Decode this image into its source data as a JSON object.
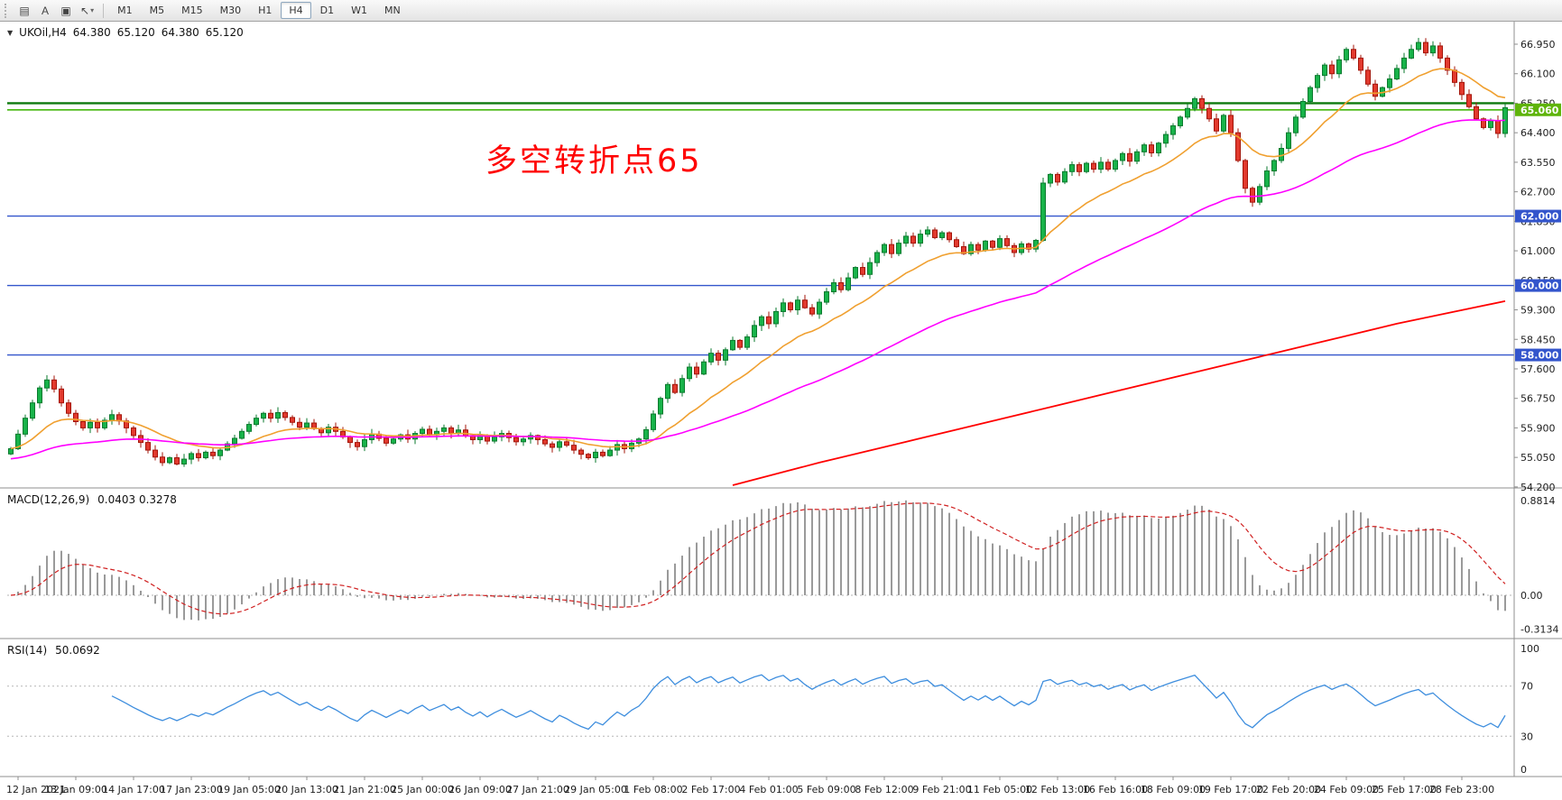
{
  "toolbar": {
    "tool_buttons": [
      {
        "name": "chart-window-icon",
        "glyph": "▤"
      },
      {
        "name": "text-annotation-icon",
        "glyph": "A"
      },
      {
        "name": "template-icon",
        "glyph": "▣"
      },
      {
        "name": "cursor-tool-icon",
        "glyph": "↖",
        "caret": true
      }
    ],
    "timeframes": [
      "M1",
      "M5",
      "M15",
      "M30",
      "H1",
      "H4",
      "D1",
      "W1",
      "MN"
    ],
    "active_timeframe": "H4"
  },
  "chart": {
    "marker": "▼",
    "symbol_period": "UKOil,H4",
    "ohlc": {
      "open": "64.380",
      "high": "65.120",
      "low": "64.380",
      "close": "65.120"
    },
    "annotation_text": "多空转折点65",
    "annotation_color": "#FF0000",
    "price_axis_labels": [
      "66.950",
      "66.100",
      "65.250",
      "64.400",
      "63.550",
      "62.700",
      "61.850",
      "61.000",
      "60.150",
      "59.300",
      "58.450",
      "57.600",
      "56.750",
      "55.900",
      "55.050",
      "54.200"
    ],
    "price_tags": [
      {
        "label": "65.060",
        "price": 65.06,
        "bg": "#5FB40A",
        "fg": "#ffffff"
      },
      {
        "label": "62.000",
        "price": 62.0,
        "bg": "#3355CC",
        "fg": "#ffffff"
      },
      {
        "label": "60.000",
        "price": 60.0,
        "bg": "#3355CC",
        "fg": "#ffffff"
      },
      {
        "label": "58.000",
        "price": 58.0,
        "bg": "#3355CC",
        "fg": "#ffffff"
      }
    ]
  },
  "macd": {
    "title": "MACD(12,26,9)",
    "values": "0.0403 0.3278",
    "axis_labels": [
      {
        "label": "0.8814",
        "value": 0.8814
      },
      {
        "label": "0.00",
        "value": 0
      },
      {
        "label": "-0.3134",
        "value": -0.3134
      }
    ]
  },
  "rsi": {
    "title": "RSI(14)",
    "value": "50.0692",
    "axis_labels": [
      {
        "label": "100",
        "value": 100
      },
      {
        "label": "70",
        "value": 70
      },
      {
        "label": "30",
        "value": 30
      },
      {
        "label": "0",
        "value": 0
      }
    ],
    "level_lines": [
      70,
      30
    ]
  },
  "time_axis": {
    "first_label_bar": 1,
    "bars_per_label": 8,
    "labels": [
      "12 Jan 2021",
      "13 Jan 09:00",
      "14 Jan 17:00",
      "17 Jan 23:00",
      "19 Jan 05:00",
      "20 Jan 13:00",
      "21 Jan 21:00",
      "25 Jan 00:00",
      "26 Jan 09:00",
      "27 Jan 21:00",
      "29 Jan 05:00",
      "1 Feb 08:00",
      "2 Feb 17:00",
      "4 Feb 01:00",
      "5 Feb 09:00",
      "8 Feb 12:00",
      "9 Feb 21:00",
      "11 Feb 05:00",
      "12 Feb 13:00",
      "16 Feb 16:00",
      "18 Feb 09:00",
      "19 Feb 17:00",
      "22 Feb 20:00",
      "24 Feb 09:00",
      "25 Feb 17:00",
      "28 Feb 23:00"
    ]
  },
  "chart_data": {
    "type": "candlestick",
    "symbol": "UKOil",
    "timeframe": "H4",
    "price_range": {
      "max": 66.95,
      "min": 54.2,
      "grid_step": 0.85
    },
    "closes": [
      55.3,
      55.72,
      56.18,
      56.62,
      57.05,
      57.28,
      57.02,
      56.62,
      56.32,
      56.08,
      55.9,
      56.06,
      55.9,
      56.12,
      56.28,
      56.1,
      55.9,
      55.68,
      55.48,
      55.26,
      55.06,
      54.9,
      55.04,
      54.86,
      55.0,
      55.16,
      55.04,
      55.2,
      55.1,
      55.26,
      55.44,
      55.6,
      55.8,
      56.0,
      56.18,
      56.32,
      56.18,
      56.34,
      56.2,
      56.06,
      55.92,
      56.04,
      55.88,
      55.76,
      55.92,
      55.8,
      55.64,
      55.48,
      55.36,
      55.56,
      55.72,
      55.6,
      55.46,
      55.58,
      55.7,
      55.58,
      55.74,
      55.86,
      55.7,
      55.8,
      55.9,
      55.74,
      55.84,
      55.68,
      55.56,
      55.68,
      55.52,
      55.64,
      55.74,
      55.62,
      55.5,
      55.58,
      55.68,
      55.56,
      55.44,
      55.34,
      55.5,
      55.4,
      55.26,
      55.14,
      55.04,
      55.2,
      55.1,
      55.26,
      55.42,
      55.3,
      55.46,
      55.58,
      55.85,
      56.3,
      56.75,
      57.15,
      56.92,
      57.32,
      57.65,
      57.45,
      57.8,
      58.05,
      57.85,
      58.15,
      58.42,
      58.22,
      58.52,
      58.85,
      59.1,
      58.9,
      59.25,
      59.5,
      59.3,
      59.58,
      59.36,
      59.18,
      59.52,
      59.82,
      60.08,
      59.88,
      60.22,
      60.52,
      60.32,
      60.66,
      60.95,
      61.18,
      60.92,
      61.22,
      61.42,
      61.22,
      61.48,
      61.6,
      61.38,
      61.52,
      61.32,
      61.12,
      60.92,
      61.18,
      61.02,
      61.28,
      61.1,
      61.35,
      61.15,
      60.95,
      61.2,
      61.05,
      61.3,
      62.95,
      63.2,
      62.98,
      63.28,
      63.48,
      63.28,
      63.52,
      63.35,
      63.55,
      63.35,
      63.6,
      63.8,
      63.58,
      63.85,
      64.05,
      63.82,
      64.1,
      64.35,
      64.6,
      64.85,
      65.1,
      65.38,
      65.1,
      64.8,
      64.45,
      64.9,
      64.4,
      63.6,
      62.8,
      62.4,
      62.85,
      63.3,
      63.6,
      63.95,
      64.4,
      64.85,
      65.3,
      65.7,
      66.05,
      66.35,
      66.1,
      66.5,
      66.8,
      66.55,
      66.2,
      65.8,
      65.45,
      65.7,
      65.95,
      66.25,
      66.55,
      66.8,
      67.0,
      66.7,
      66.9,
      66.55,
      66.2,
      65.85,
      65.5,
      65.15,
      64.8,
      64.55,
      64.75,
      64.38,
      65.12
    ],
    "horizontal_lines": [
      {
        "price": 65.25,
        "color": "#0E7A0E",
        "width": 2.4
      },
      {
        "price": 65.06,
        "color": "#44B80E",
        "width": 1.6
      },
      {
        "price": 62.0,
        "color": "#3355CC",
        "width": 1.4
      },
      {
        "price": 60.0,
        "color": "#3355CC",
        "width": 1.4
      },
      {
        "price": 58.0,
        "color": "#3355CC",
        "width": 1.4
      }
    ],
    "moving_averages": [
      {
        "name": "fast",
        "color": "#F0A030",
        "period": 16
      },
      {
        "name": "medium",
        "color": "#FF00FF",
        "period": 55,
        "seed": 55.0
      },
      {
        "name": "slow",
        "color": "#FF0000",
        "anchors": [
          [
            100,
            54.25
          ],
          [
            112,
            54.9
          ],
          [
            124,
            55.5
          ],
          [
            136,
            56.1
          ],
          [
            144,
            56.5
          ],
          [
            152,
            56.9
          ],
          [
            160,
            57.3
          ],
          [
            168,
            57.7
          ],
          [
            176,
            58.1
          ],
          [
            184,
            58.5
          ],
          [
            192,
            58.9
          ],
          [
            200,
            59.25
          ],
          [
            207,
            59.55
          ]
        ]
      }
    ],
    "candle_colors": {
      "up": "#18B34A",
      "up_dark": "#0A7A2E",
      "down": "#E23A2E",
      "down_dark": "#A31409"
    },
    "macd": {
      "fast": 12,
      "slow": 26,
      "signal": 9,
      "histogram_color": "#9A9A9A",
      "signal_color": "#D02020",
      "range": {
        "max": 0.8814,
        "min": -0.3134
      }
    },
    "rsi": {
      "period": 14,
      "line_color": "#3E8EDE",
      "range": {
        "max": 100,
        "min": 0
      }
    }
  }
}
